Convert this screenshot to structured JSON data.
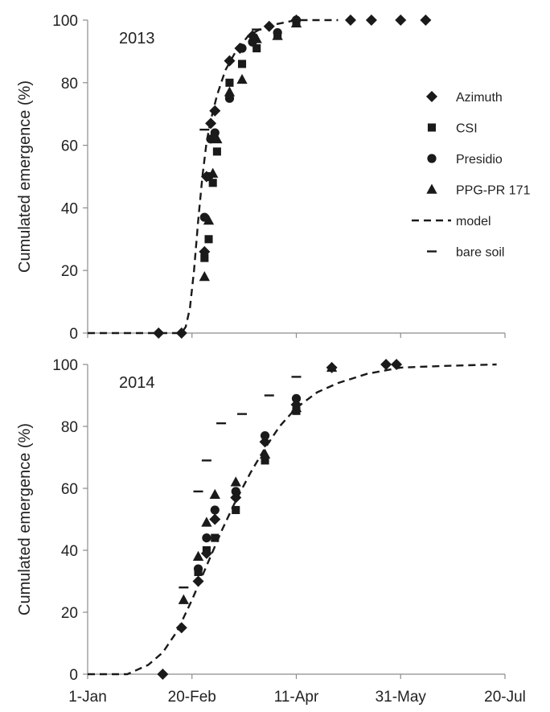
{
  "chart_data": [
    {
      "type": "scatter",
      "panel_label": "2013",
      "ylabel": "Cumulated emergence (%)",
      "xlabel": "",
      "ylim": [
        0,
        100
      ],
      "yticks": [
        0,
        20,
        40,
        60,
        80,
        100
      ],
      "xlim": [
        "2013-01-01",
        "2013-07-20"
      ],
      "show_x_tick_labels": false,
      "legend": {
        "position": "right",
        "entries": [
          {
            "label": "Azimuth",
            "marker": "diamond"
          },
          {
            "label": "CSI",
            "marker": "square"
          },
          {
            "label": "Presidio",
            "marker": "circle"
          },
          {
            "label": "PPG-PR 171",
            "marker": "triangle"
          },
          {
            "label": "model",
            "marker": "dashed-line"
          },
          {
            "label": "bare soil",
            "marker": "dash"
          }
        ]
      },
      "series": [
        {
          "name": "Azimuth",
          "marker": "diamond",
          "points": [
            [
              "2013-02-04",
              0
            ],
            [
              "2013-02-15",
              0
            ],
            [
              "2013-02-26",
              26
            ],
            [
              "2013-02-27",
              50
            ],
            [
              "2013-03-01",
              67
            ],
            [
              "2013-03-03",
              71
            ],
            [
              "2013-03-10",
              87
            ],
            [
              "2013-03-15",
              91
            ],
            [
              "2013-03-21",
              95
            ],
            [
              "2013-03-29",
              98
            ],
            [
              "2013-04-11",
              100
            ],
            [
              "2013-05-07",
              100
            ],
            [
              "2013-05-17",
              100
            ],
            [
              "2013-05-31",
              100
            ],
            [
              "2013-06-12",
              100
            ]
          ]
        },
        {
          "name": "CSI",
          "marker": "square",
          "points": [
            [
              "2013-02-26",
              24
            ],
            [
              "2013-02-28",
              30
            ],
            [
              "2013-03-02",
              48
            ],
            [
              "2013-03-04",
              58
            ],
            [
              "2013-03-10",
              80
            ],
            [
              "2013-03-16",
              86
            ],
            [
              "2013-03-23",
              91
            ],
            [
              "2013-04-02",
              95
            ],
            [
              "2013-04-11",
              99
            ]
          ]
        },
        {
          "name": "Presidio",
          "marker": "circle",
          "points": [
            [
              "2013-02-26",
              37
            ],
            [
              "2013-02-28",
              50
            ],
            [
              "2013-03-01",
              62
            ],
            [
              "2013-03-03",
              64
            ],
            [
              "2013-03-10",
              75
            ],
            [
              "2013-03-16",
              91
            ],
            [
              "2013-03-21",
              93
            ],
            [
              "2013-04-02",
              96
            ],
            [
              "2013-04-11",
              100
            ]
          ]
        },
        {
          "name": "PPG-PR 171",
          "marker": "triangle",
          "points": [
            [
              "2013-02-26",
              18
            ],
            [
              "2013-02-28",
              36
            ],
            [
              "2013-03-02",
              51
            ],
            [
              "2013-03-04",
              62
            ],
            [
              "2013-03-10",
              77
            ],
            [
              "2013-03-16",
              81
            ],
            [
              "2013-03-23",
              94
            ],
            [
              "2013-04-02",
              95
            ],
            [
              "2013-04-11",
              99
            ]
          ]
        }
      ],
      "model": [
        [
          "2013-01-01",
          0
        ],
        [
          "2013-02-15",
          0
        ],
        [
          "2013-02-17",
          2
        ],
        [
          "2013-02-19",
          8
        ],
        [
          "2013-02-21",
          20
        ],
        [
          "2013-02-23",
          36
        ],
        [
          "2013-02-25",
          50
        ],
        [
          "2013-02-27",
          61
        ],
        [
          "2013-03-01",
          68
        ],
        [
          "2013-03-04",
          76
        ],
        [
          "2013-03-08",
          84
        ],
        [
          "2013-03-13",
          90
        ],
        [
          "2013-03-19",
          95
        ],
        [
          "2013-03-27",
          98
        ],
        [
          "2013-04-11",
          100
        ],
        [
          "2013-05-01",
          100
        ]
      ],
      "bare_soil": [
        [
          "2013-02-26",
          65
        ],
        [
          "2013-03-23",
          97
        ]
      ]
    },
    {
      "type": "scatter",
      "panel_label": "2014",
      "ylabel": "Cumulated emergence (%)",
      "xlabel": "",
      "ylim": [
        0,
        100
      ],
      "yticks": [
        0,
        20,
        40,
        60,
        80,
        100
      ],
      "xlim": [
        "2014-01-01",
        "2014-07-20"
      ],
      "xticks": [
        "1-Jan",
        "20-Feb",
        "11-Apr",
        "31-May",
        "20-Jul"
      ],
      "series": [
        {
          "name": "Azimuth",
          "marker": "diamond",
          "points": [
            [
              "2014-02-06",
              0
            ],
            [
              "2014-02-15",
              15
            ],
            [
              "2014-02-23",
              30
            ],
            [
              "2014-02-27",
              39
            ],
            [
              "2014-03-03",
              50
            ],
            [
              "2014-03-13",
              57
            ],
            [
              "2014-03-27",
              75
            ],
            [
              "2014-04-11",
              87
            ],
            [
              "2014-04-28",
              99
            ],
            [
              "2014-05-24",
              100
            ],
            [
              "2014-05-29",
              100
            ]
          ]
        },
        {
          "name": "CSI",
          "marker": "square",
          "points": [
            [
              "2014-02-23",
              33
            ],
            [
              "2014-02-27",
              40
            ],
            [
              "2014-03-03",
              44
            ],
            [
              "2014-03-13",
              53
            ],
            [
              "2014-03-27",
              69
            ],
            [
              "2014-04-11",
              85
            ]
          ]
        },
        {
          "name": "Presidio",
          "marker": "circle",
          "points": [
            [
              "2014-02-23",
              34
            ],
            [
              "2014-02-27",
              44
            ],
            [
              "2014-03-03",
              53
            ],
            [
              "2014-03-13",
              59
            ],
            [
              "2014-03-27",
              77
            ],
            [
              "2014-04-11",
              89
            ]
          ]
        },
        {
          "name": "PPG-PR 171",
          "marker": "triangle",
          "points": [
            [
              "2014-02-16",
              24
            ],
            [
              "2014-02-23",
              38
            ],
            [
              "2014-02-27",
              49
            ],
            [
              "2014-03-03",
              58
            ],
            [
              "2014-03-13",
              62
            ],
            [
              "2014-03-27",
              71
            ],
            [
              "2014-04-11",
              86
            ],
            [
              "2014-04-28",
              99
            ]
          ]
        }
      ],
      "model": [
        [
          "2014-01-01",
          0
        ],
        [
          "2014-01-20",
          0
        ],
        [
          "2014-01-30",
          3
        ],
        [
          "2014-02-06",
          7
        ],
        [
          "2014-02-13",
          14
        ],
        [
          "2014-02-20",
          24
        ],
        [
          "2014-02-27",
          35
        ],
        [
          "2014-03-06",
          46
        ],
        [
          "2014-03-13",
          56
        ],
        [
          "2014-03-20",
          65
        ],
        [
          "2014-03-27",
          73
        ],
        [
          "2014-04-03",
          80
        ],
        [
          "2014-04-11",
          86
        ],
        [
          "2014-04-21",
          91
        ],
        [
          "2014-05-01",
          94
        ],
        [
          "2014-05-15",
          97
        ],
        [
          "2014-05-31",
          99
        ],
        [
          "2014-06-20",
          99.5
        ],
        [
          "2014-07-16",
          100
        ]
      ],
      "bare_soil": [
        [
          "2014-02-16",
          28
        ],
        [
          "2014-02-23",
          59
        ],
        [
          "2014-02-27",
          69
        ],
        [
          "2014-03-06",
          81
        ],
        [
          "2014-03-16",
          84
        ],
        [
          "2014-03-29",
          90
        ],
        [
          "2014-04-11",
          96
        ]
      ]
    }
  ]
}
